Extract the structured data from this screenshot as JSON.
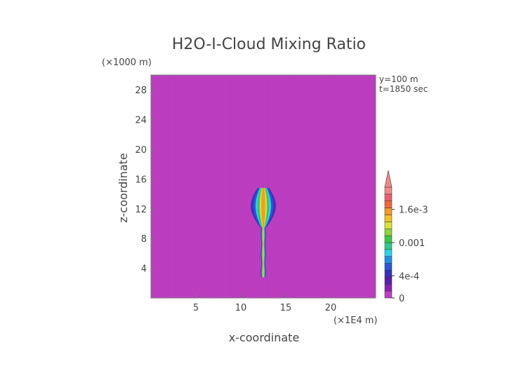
{
  "chart_data": {
    "type": "heatmap",
    "title": "H2O-I-Cloud Mixing Ratio",
    "y_unit": "(×1000 m)",
    "x_unit": "(×1E4 m)",
    "xlabel": "x-coordinate",
    "ylabel": "z-coordinate",
    "xlim": [
      0,
      25
    ],
    "ylim": [
      0,
      30
    ],
    "x_ticks": [
      5,
      10,
      15,
      20
    ],
    "y_ticks": [
      4,
      8,
      12,
      16,
      20,
      24,
      28
    ],
    "annotations": [
      "y=100 m",
      "t=1850 sec"
    ],
    "background_value": 0,
    "colorbar": {
      "tick_labels": [
        "0",
        "4e-4",
        "0.001",
        "1.6e-3"
      ],
      "tick_values": [
        0,
        0.0004,
        0.001,
        0.0016
      ],
      "range": [
        0,
        0.002
      ],
      "extend": "max",
      "colors": [
        "#bd3fc1",
        "#8a1fb0",
        "#5a1fa6",
        "#3a2fb8",
        "#2a55d4",
        "#1f8fe6",
        "#2fd2ee",
        "#2fc88a",
        "#3fc44a",
        "#8fd23a",
        "#d8e23a",
        "#f2c22a",
        "#f29a2a",
        "#ee6a3a",
        "#e8606a",
        "#f08888"
      ]
    },
    "plume": {
      "center_x": 12.5,
      "z_range": [
        2.8,
        14.8
      ],
      "peak_value": 0.0016
    }
  }
}
